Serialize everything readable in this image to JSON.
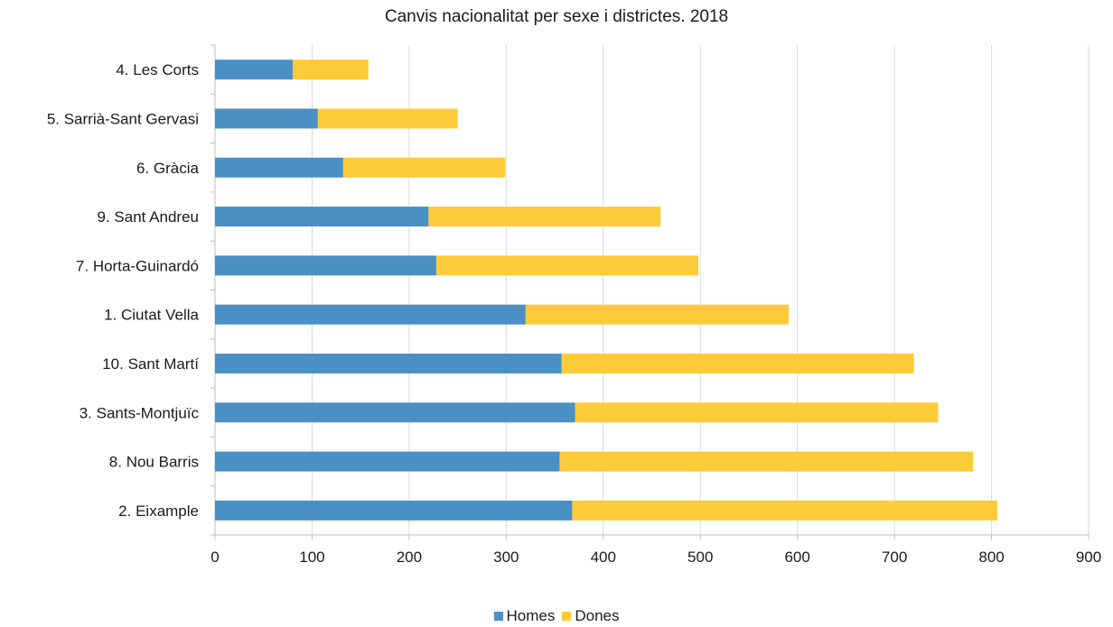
{
  "chart_data": {
    "type": "bar",
    "orientation": "horizontal",
    "stacked": true,
    "title": "Canvis nacionalitat per sexe i districtes. 2018",
    "categories": [
      "4. Les Corts",
      "5. Sarrià-Sant Gervasi",
      "6. Gràcia",
      "9. Sant Andreu",
      "7. Horta-Guinardó",
      "1. Ciutat Vella",
      "10. Sant Martí",
      "3. Sants-Montjuïc",
      "8. Nou Barris",
      "2. Eixample"
    ],
    "series": [
      {
        "name": "Homes",
        "color": "#4a90c4",
        "values": [
          80,
          106,
          132,
          220,
          228,
          320,
          357,
          371,
          355,
          368
        ]
      },
      {
        "name": "Dones",
        "color": "#fdcb3a",
        "values": [
          78,
          144,
          167,
          239,
          270,
          271,
          363,
          374,
          426,
          438
        ]
      }
    ],
    "xlim": [
      0,
      900
    ],
    "xticks": [
      "0",
      "100",
      "200",
      "300",
      "400",
      "500",
      "600",
      "700",
      "800",
      "900"
    ],
    "grid": "vertical",
    "legend_position": "bottom"
  }
}
